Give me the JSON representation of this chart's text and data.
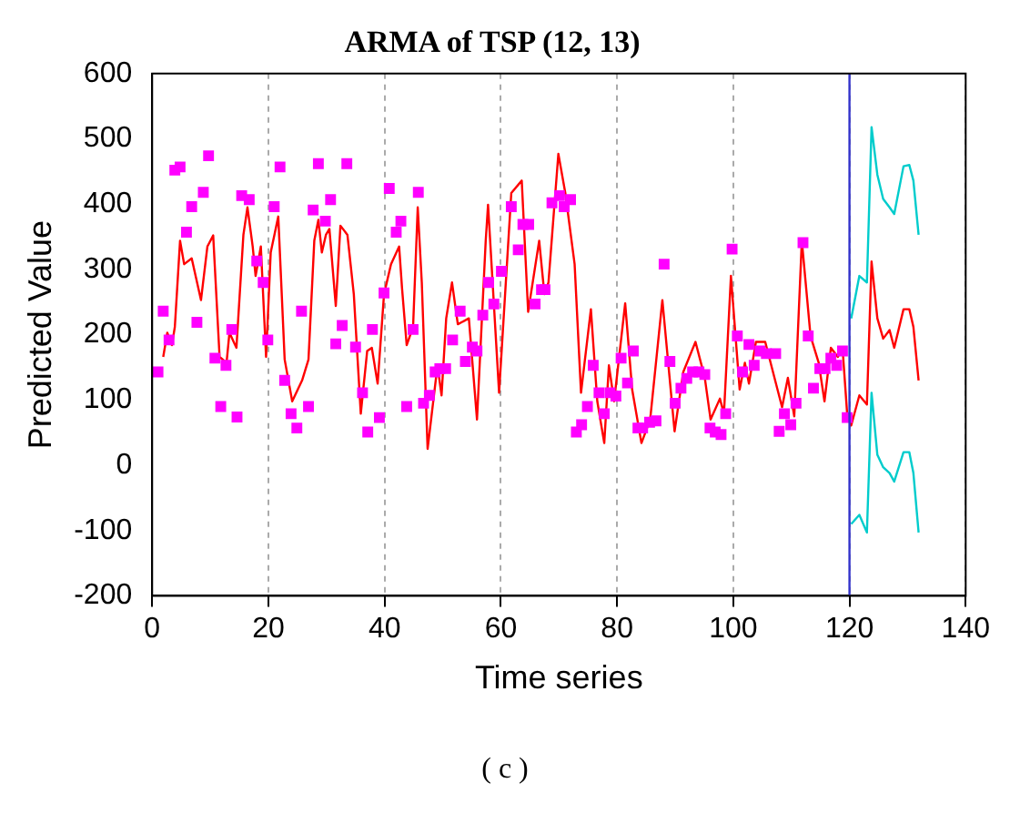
{
  "chart_data": {
    "type": "line",
    "title": "ARMA of TSP (12, 13)",
    "xlabel": "Time series",
    "ylabel": "Predicted Value",
    "annotations": [
      "( c )"
    ],
    "xlim": [
      0,
      140
    ],
    "xticks": [
      0,
      20,
      40,
      60,
      80,
      100,
      120,
      140
    ],
    "ylim": [
      -200,
      600
    ],
    "yticks": [
      -200,
      -100,
      0,
      100,
      200,
      300,
      400,
      500,
      600
    ],
    "grid": "x",
    "legend": false,
    "ref_lines": [
      {
        "axis": "x",
        "value": 120,
        "color": "#3333cc"
      }
    ],
    "series": [
      {
        "type": "scatter",
        "color": "#ff00ff",
        "marker": "square",
        "x": [
          1.0,
          1.9,
          2.9,
          3.9,
          4.8,
          5.9,
          6.8,
          7.7,
          8.8,
          9.7,
          10.8,
          11.8,
          12.7,
          13.7,
          14.6,
          15.4,
          16.7,
          18.0,
          19.1,
          19.9,
          21.0,
          22.0,
          22.8,
          23.9,
          24.9,
          25.7,
          26.9,
          27.7,
          28.6,
          29.8,
          30.7,
          31.6,
          32.7,
          33.5,
          35.0,
          36.2,
          37.1,
          37.9,
          39.1,
          39.9,
          40.8,
          42.0,
          42.8,
          43.8,
          44.9,
          45.8,
          46.7,
          47.7,
          48.7,
          49.5,
          50.5,
          51.7,
          53.0,
          53.9,
          55.1,
          55.9,
          56.9,
          57.9,
          58.8,
          60.1,
          61.8,
          63.0,
          63.8,
          64.8,
          65.9,
          67.0,
          67.6,
          68.8,
          70.1,
          70.9,
          72.0,
          73.0,
          73.9,
          74.9,
          75.9,
          76.9,
          77.8,
          78.8,
          79.8,
          80.7,
          81.8,
          82.8,
          83.6,
          84.4,
          85.6,
          86.7,
          88.1,
          89.1,
          90.0,
          91.0,
          92.0,
          93.0,
          94.1,
          95.1,
          96.0,
          96.9,
          97.9,
          98.7,
          99.8,
          100.7,
          101.6,
          102.7,
          103.6,
          104.6,
          105.7,
          107.3,
          107.9,
          108.8,
          109.9,
          110.8,
          112.0,
          112.9,
          113.8,
          114.9,
          115.8,
          116.8,
          117.8,
          118.8,
          119.6
        ],
        "values": [
          143,
          236,
          192,
          452,
          457,
          357,
          396,
          219,
          418,
          474,
          164,
          90,
          153,
          208,
          74,
          413,
          407,
          313,
          280,
          192,
          396,
          457,
          130,
          79,
          57,
          236,
          90,
          391,
          462,
          374,
          407,
          186,
          214,
          462,
          181,
          111,
          51,
          208,
          73,
          264,
          424,
          357,
          374,
          90,
          208,
          418,
          95,
          107,
          143,
          148,
          148,
          192,
          236,
          159,
          181,
          175,
          230,
          280,
          247,
          297,
          396,
          330,
          369,
          369,
          247,
          269,
          269,
          402,
          413,
          396,
          407,
          51,
          62,
          90,
          153,
          111,
          79,
          111,
          106,
          164,
          126,
          175,
          57,
          57,
          66,
          68,
          308,
          159,
          95,
          118,
          133,
          143,
          143,
          139,
          57,
          51,
          47,
          79,
          331,
          198,
          143,
          185,
          153,
          175,
          171,
          171,
          52,
          79,
          62,
          95,
          341,
          198,
          118,
          148,
          148,
          164,
          153,
          175,
          73
        ]
      },
      {
        "color": "#ff0000",
        "marker": "none",
        "x": [
          1.9,
          2.6,
          3.4,
          3.9,
          4.8,
          5.5,
          6.8,
          8.4,
          9.5,
          10.5,
          11.6,
          12.8,
          13.3,
          14.5,
          15.7,
          16.4,
          17.3,
          17.8,
          18.7,
          19.6,
          20.4,
          21.7,
          22.8,
          24.1,
          25.8,
          26.9,
          27.9,
          28.6,
          29.2,
          29.9,
          30.5,
          31.6,
          32.4,
          33.6,
          34.7,
          35.9,
          37.0,
          37.8,
          38.8,
          39.9,
          41.1,
          42.5,
          43.0,
          43.8,
          44.9,
          45.7,
          46.4,
          47.4,
          49.1,
          49.8,
          50.6,
          51.6,
          52.6,
          54.5,
          55.9,
          57.4,
          57.8,
          59.7,
          61.8,
          63.6,
          64.7,
          66.6,
          67.5,
          68.2,
          69.9,
          71.1,
          72.7,
          73.8,
          75.5,
          76.6,
          77.8,
          78.6,
          79.5,
          81.4,
          82.6,
          84.2,
          85.7,
          87.8,
          89.9,
          91.4,
          93.5,
          95.1,
          96.1,
          97.7,
          98.4,
          99.6,
          101.1,
          102.0,
          102.7,
          103.9,
          105.5,
          108.4,
          109.4,
          110.5,
          111.8,
          113.3,
          114.7,
          115.7,
          116.8,
          118.0,
          118.8,
          119.6,
          120.3,
          121.7,
          123.0,
          123.8,
          124.8,
          125.8,
          126.9,
          127.7,
          129.3,
          130.3,
          131.0,
          131.9
        ],
        "values": [
          166,
          203,
          184,
          212,
          344,
          308,
          317,
          253,
          335,
          352,
          166,
          157,
          203,
          180,
          353,
          395,
          335,
          290,
          335,
          166,
          326,
          381,
          162,
          98,
          130,
          162,
          344,
          376,
          326,
          353,
          362,
          244,
          367,
          353,
          262,
          79,
          175,
          180,
          125,
          262,
          308,
          335,
          271,
          184,
          212,
          395,
          280,
          25,
          153,
          107,
          225,
          280,
          216,
          225,
          70,
          344,
          399,
          111,
          417,
          436,
          235,
          344,
          262,
          280,
          477,
          417,
          308,
          111,
          239,
          98,
          34,
          153,
          98,
          248,
          116,
          34,
          70,
          253,
          52,
          143,
          189,
          134,
          70,
          102,
          79,
          290,
          116,
          157,
          125,
          189,
          189,
          89,
          134,
          75,
          344,
          198,
          157,
          98,
          180,
          166,
          180,
          79,
          61,
          107,
          93,
          312,
          225,
          194,
          207,
          180,
          239,
          239,
          212,
          130
        ]
      },
      {
        "color": "#00cccc",
        "marker": "none",
        "x": [
          120.3,
          121.7,
          123.0,
          123.8,
          124.8,
          125.8,
          126.9,
          127.7,
          129.3,
          130.3,
          131.0,
          131.9
        ],
        "values": [
          225,
          290,
          280,
          518,
          445,
          408,
          395,
          385,
          458,
          460,
          436,
          353
        ]
      },
      {
        "color": "#00cccc",
        "marker": "none",
        "x": [
          120.3,
          121.7,
          123.0,
          123.8,
          124.8,
          125.8,
          126.9,
          127.7,
          129.3,
          130.3,
          131.0,
          131.9
        ],
        "values": [
          -90,
          -76,
          -103,
          111,
          16,
          -3,
          -12,
          -25,
          20,
          20,
          -12,
          -103
        ]
      }
    ]
  }
}
